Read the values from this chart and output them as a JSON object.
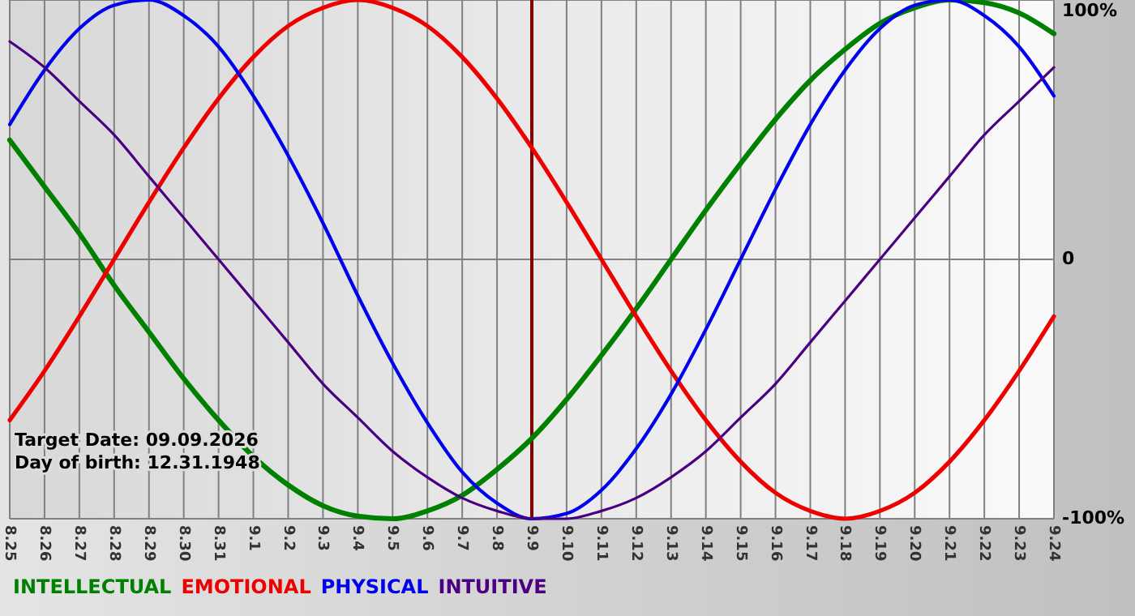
{
  "chart_data": {
    "type": "line",
    "categories": [
      "8.25",
      "8.26",
      "8.27",
      "8.28",
      "8.29",
      "8.30",
      "8.31",
      "9.1",
      "9.2",
      "9.3",
      "9.4",
      "9.5",
      "9.6",
      "9.7",
      "9.8",
      "9.9",
      "9.10",
      "9.11",
      "9.12",
      "9.13",
      "9.14",
      "9.15",
      "9.16",
      "9.17",
      "9.18",
      "9.19",
      "9.20",
      "9.21",
      "9.22",
      "9.23",
      "9.24"
    ],
    "series": [
      {
        "name": "INTELLECTUAL",
        "color": "#008000",
        "values": [
          46,
          28,
          10,
          -10,
          -28,
          -46,
          -62,
          -76,
          -87,
          -95,
          -99,
          -100,
          -97,
          -91,
          -81,
          -69,
          -54,
          -37,
          -19,
          0,
          19,
          37,
          54,
          69,
          81,
          91,
          97,
          100,
          99,
          95,
          87
        ]
      },
      {
        "name": "EMOTIONAL",
        "color": "#ee0000",
        "values": [
          -62,
          -43,
          -22,
          0,
          22,
          43,
          62,
          78,
          90,
          97,
          100,
          97,
          90,
          78,
          62,
          43,
          22,
          0,
          -22,
          -43,
          -62,
          -78,
          -90,
          -97,
          -100,
          -97,
          -90,
          -78,
          -62,
          -43,
          -22
        ]
      },
      {
        "name": "PHYSICAL",
        "color": "#0000ee",
        "values": [
          52,
          73,
          89,
          98,
          100,
          94,
          82,
          63,
          40,
          14,
          -14,
          -40,
          -63,
          -82,
          -94,
          -100,
          -98,
          -89,
          -73,
          -52,
          -27,
          0,
          27,
          52,
          73,
          89,
          98,
          100,
          94,
          82,
          63
        ]
      },
      {
        "name": "INTUITIVE",
        "color": "#4b0082",
        "values": [
          84,
          74,
          61,
          48,
          32,
          16,
          0,
          -16,
          -32,
          -48,
          -61,
          -74,
          -84,
          -92,
          -97,
          -100,
          -100,
          -97,
          -92,
          -84,
          -74,
          -61,
          -48,
          -32,
          -16,
          0,
          16,
          32,
          48,
          61,
          74
        ]
      }
    ],
    "ylim": [
      -100,
      100
    ],
    "yticks": [
      {
        "value": 100,
        "label": "100%"
      },
      0,
      {
        "value": -100,
        "label": "-100%"
      }
    ],
    "grid": true,
    "legend": "bottom",
    "ref_lines": [
      {
        "axis": "x",
        "value": "9.9",
        "color": "#800000"
      }
    ],
    "annotations": [
      "Target Date: 09.09.2026",
      "Day of birth: 12.31.1948"
    ]
  }
}
